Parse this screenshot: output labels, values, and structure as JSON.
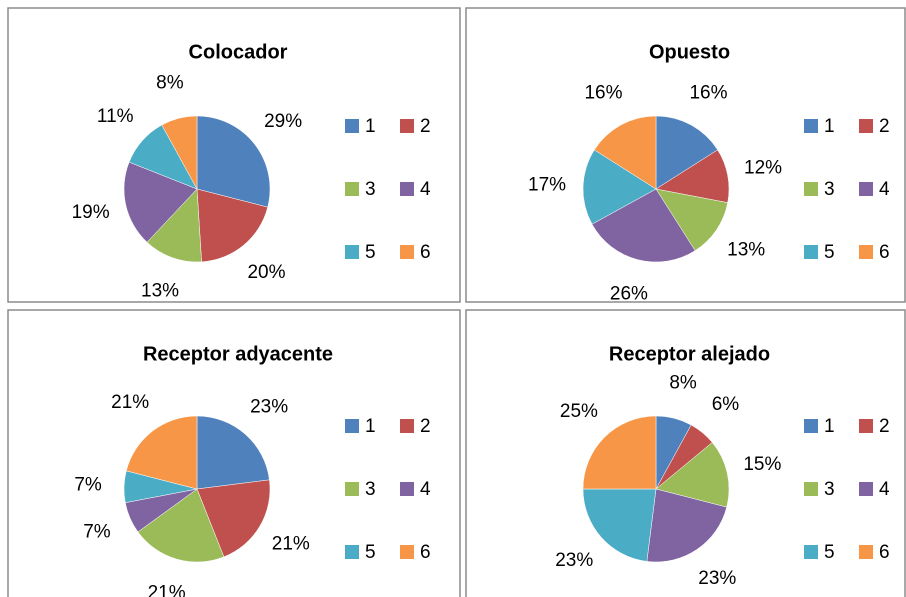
{
  "chart_data": [
    {
      "type": "pie",
      "title": "Colocador",
      "categories": [
        "1",
        "2",
        "3",
        "4",
        "5",
        "6"
      ],
      "values": [
        29,
        20,
        13,
        19,
        11,
        8
      ],
      "value_labels": [
        "29%",
        "20%",
        "13%",
        "19%",
        "11%",
        "8%"
      ],
      "colors": [
        "#4f81bd",
        "#c0504d",
        "#9bbb59",
        "#8064a2",
        "#4bacc6",
        "#f79646"
      ]
    },
    {
      "type": "pie",
      "title": "Opuesto",
      "categories": [
        "1",
        "2",
        "3",
        "4",
        "5",
        "6"
      ],
      "values": [
        16,
        12,
        13,
        26,
        17,
        16
      ],
      "value_labels": [
        "16%",
        "12%",
        "13%",
        "26%",
        "17%",
        "16%"
      ],
      "colors": [
        "#4f81bd",
        "#c0504d",
        "#9bbb59",
        "#8064a2",
        "#4bacc6",
        "#f79646"
      ]
    },
    {
      "type": "pie",
      "title": "Receptor adyacente",
      "categories": [
        "1",
        "2",
        "3",
        "4",
        "5",
        "6"
      ],
      "values": [
        23,
        21,
        21,
        7,
        7,
        21
      ],
      "value_labels": [
        "23%",
        "21%",
        "21%",
        "7%",
        "7%",
        "21%"
      ],
      "colors": [
        "#4f81bd",
        "#c0504d",
        "#9bbb59",
        "#8064a2",
        "#4bacc6",
        "#f79646"
      ]
    },
    {
      "type": "pie",
      "title": "Receptor alejado",
      "categories": [
        "1",
        "2",
        "3",
        "4",
        "5",
        "6"
      ],
      "values": [
        8,
        6,
        15,
        23,
        23,
        25
      ],
      "value_labels": [
        "8%",
        "6%",
        "15%",
        "23%",
        "23%",
        "25%"
      ],
      "colors": [
        "#4f81bd",
        "#c0504d",
        "#9bbb59",
        "#8064a2",
        "#4bacc6",
        "#f79646"
      ]
    }
  ]
}
